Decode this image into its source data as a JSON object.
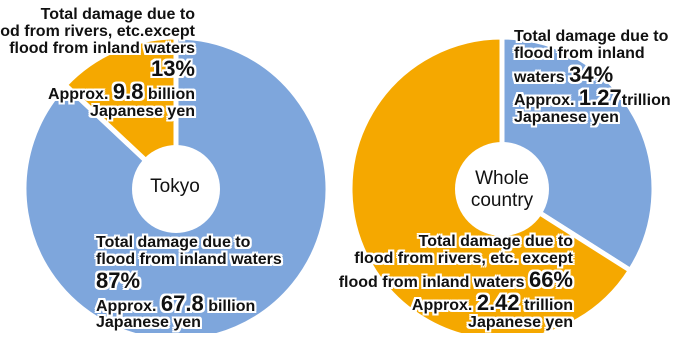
{
  "chart_data": [
    {
      "type": "pie",
      "title": "",
      "center_label": "Tokyo",
      "slices": [
        {
          "name_lines": [
            "Total damage due to",
            "flood from inland waters"
          ],
          "percent": 87,
          "percent_text": "87%",
          "approx_prefix": "Approx.",
          "amount": "67.8",
          "unit": "billion",
          "unit_line2": "Japanese yen",
          "color": "#7ea6dc"
        },
        {
          "name_lines": [
            "Total damage due to",
            "flood from rivers, etc.except",
            "flood from inland waters"
          ],
          "percent": 13,
          "percent_text": "13%",
          "approx_prefix": "Approx.",
          "amount": "9.8",
          "unit": "billion",
          "unit_line2": "Japanese yen",
          "color": "#f5a800"
        }
      ]
    },
    {
      "type": "pie",
      "title": "",
      "center_label_lines": [
        "Whole",
        "country"
      ],
      "slices": [
        {
          "name_lines": [
            "Total damage due to",
            "flood from inland",
            "waters"
          ],
          "percent": 34,
          "percent_text": "34%",
          "approx_prefix": "Approx.",
          "amount": "1.27",
          "unit": "trillion",
          "unit_line2": "Japanese yen",
          "color": "#7ea6dc"
        },
        {
          "name_lines": [
            "Total damage due to",
            "flood from rivers, etc. except",
            "flood from inland waters"
          ],
          "percent": 66,
          "percent_text": "66%",
          "approx_prefix": "Approx.",
          "amount": "2.42",
          "unit": "trillion",
          "unit_line2": "Japanese yen",
          "color": "#f5a800"
        }
      ]
    }
  ]
}
